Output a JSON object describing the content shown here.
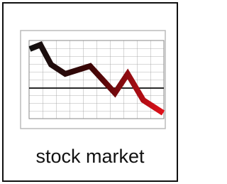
{
  "label": "stock market"
}
